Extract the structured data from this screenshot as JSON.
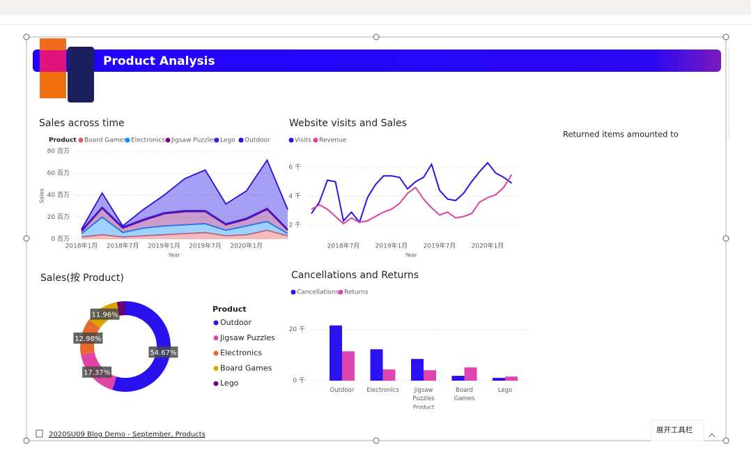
{
  "header": {
    "title": "Product Analysis"
  },
  "card": {
    "text": "Returned items amounted to"
  },
  "footer": {
    "page": "2020SU09 Blog Demo - September, Products",
    "toolbar": "展开工具栏"
  },
  "chart_data": [
    {
      "type": "area",
      "stacked": true,
      "title": "Sales across time",
      "legend_title": "Product",
      "x_label": "Year",
      "y_label": "Sales",
      "categories": [
        "2018年1月",
        null,
        "2018年7月",
        null,
        "2019年1月",
        null,
        "2019年7月",
        null,
        "2020年1月",
        null,
        null
      ],
      "series": [
        {
          "name": "Board Games",
          "color": "#e05a5e",
          "values": [
            2,
            4,
            2,
            3,
            4,
            5,
            6,
            3,
            4,
            8,
            3
          ]
        },
        {
          "name": "Electronics",
          "color": "#118dff",
          "values": [
            3,
            16,
            4,
            7,
            8,
            8,
            8,
            5,
            8,
            8,
            2
          ]
        },
        {
          "name": "Jigsaw Puzzles",
          "color": "#750985",
          "values": [
            2,
            8,
            4,
            7,
            11,
            12,
            11,
            5,
            6,
            11,
            3
          ]
        },
        {
          "name": "Lego",
          "color": "#3b1bd8",
          "values": [
            1,
            1,
            1,
            1,
            1,
            1,
            1,
            1,
            1,
            1,
            1
          ]
        },
        {
          "name": "Outdoor",
          "color": "#2410e0",
          "values": [
            1,
            13,
            1,
            9,
            16,
            29,
            37,
            18,
            25,
            44,
            18
          ]
        }
      ],
      "ylim": [
        0,
        80
      ],
      "yticks": [
        {
          "value": 0,
          "label": "0 百万"
        },
        {
          "value": 20,
          "label": "20 百万"
        },
        {
          "value": 40,
          "label": "40 百万"
        },
        {
          "value": 60,
          "label": "60 百万"
        },
        {
          "value": 80,
          "label": "80 百万"
        }
      ],
      "grid": true
    },
    {
      "type": "line",
      "title": "Website visits and Sales",
      "x_label": "Year",
      "categories": [
        null,
        null,
        null,
        null,
        "2018年7月",
        null,
        null,
        null,
        null,
        null,
        "2019年1月",
        null,
        null,
        null,
        null,
        null,
        "2019年7月",
        null,
        null,
        null,
        null,
        null,
        "2020年1月",
        null,
        null,
        null
      ],
      "series": [
        {
          "name": "Visits",
          "color": "#2a13e6",
          "values": [
            2.8,
            3.6,
            5.1,
            5.0,
            2.3,
            2.9,
            2.2,
            3.9,
            4.8,
            5.4,
            5.4,
            5.3,
            4.5,
            5.0,
            5.3,
            6.2,
            4.4,
            3.8,
            3.7,
            4.2,
            5.0,
            5.7,
            6.3,
            5.6,
            5.3,
            4.9
          ]
        },
        {
          "name": "Revenue",
          "color": "#e040a0",
          "values": [
            3.1,
            3.4,
            3.1,
            2.6,
            2.1,
            2.5,
            2.2,
            2.3,
            2.6,
            2.9,
            3.1,
            3.5,
            4.2,
            4.6,
            3.8,
            3.2,
            2.7,
            2.9,
            2.5,
            2.6,
            2.8,
            3.6,
            3.9,
            4.1,
            4.6,
            5.5
          ]
        }
      ],
      "ylim": [
        1.5,
        7
      ],
      "yticks": [
        {
          "value": 2,
          "label": "2 千"
        },
        {
          "value": 4,
          "label": "4 千"
        },
        {
          "value": 6,
          "label": "6 千"
        }
      ],
      "grid": true
    },
    {
      "type": "donut",
      "title": "Sales(按 Product)",
      "legend_title": "Product",
      "categories": [
        "Outdoor",
        "Jigsaw Puzzles",
        "Electronics",
        "Board Games",
        "Lego"
      ],
      "values": [
        54.67,
        17.37,
        12.98,
        11.96,
        3.02
      ],
      "value_labels": [
        "54.67%",
        "17.37%",
        "12.98%",
        "11.96%",
        null
      ],
      "colors": [
        "#2a12ee",
        "#e044a7",
        "#e8692b",
        "#d9a300",
        "#6b007b"
      ]
    },
    {
      "type": "bar",
      "title": "Cancellations and Returns",
      "x_label": "Product",
      "categories": [
        "Outdoor",
        "Electronics",
        "Jigsaw Puzzles",
        "Board Games",
        "Lego"
      ],
      "series": [
        {
          "name": "Cancellations",
          "color": "#2b12f0",
          "values": [
            21.6,
            12.3,
            8.5,
            1.9,
            1.1
          ]
        },
        {
          "name": "Returns",
          "color": "#e044b0",
          "values": [
            11.5,
            4.4,
            4.1,
            5.2,
            1.6
          ]
        }
      ],
      "ylim": [
        0,
        24
      ],
      "yticks": [
        {
          "value": 0,
          "label": "0 千"
        },
        {
          "value": 20,
          "label": "20 千"
        }
      ],
      "grid": true
    }
  ]
}
